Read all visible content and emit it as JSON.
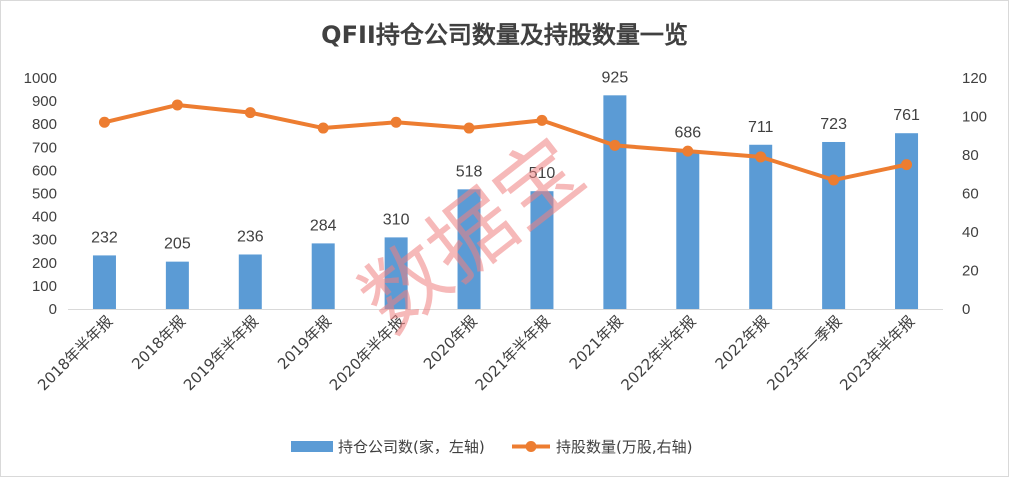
{
  "chart_data": {
    "type": "bar",
    "title": "QFII持仓公司数量及持股数量一览",
    "categories": [
      "2018年半年报",
      "2018年报",
      "2019年半年报",
      "2019年报",
      "2020年半年报",
      "2020年报",
      "2021年半年报",
      "2021年报",
      "2022年半年报",
      "2022年报",
      "2023年一季报",
      "2023年半年报"
    ],
    "series": [
      {
        "name": "持仓公司数(家，左轴)",
        "type": "bar",
        "axis": "left",
        "color": "#5b9bd5",
        "values": [
          232,
          205,
          236,
          284,
          310,
          518,
          510,
          925,
          686,
          711,
          723,
          761
        ]
      },
      {
        "name": "持股数量(万股,右轴)",
        "type": "line",
        "axis": "right",
        "color": "#ed7d31",
        "values": [
          97,
          106,
          102,
          94,
          97,
          94,
          98,
          85,
          82,
          79,
          67,
          75
        ]
      }
    ],
    "left_axis": {
      "ylim": [
        0,
        1000
      ],
      "ticks": [
        0,
        100,
        200,
        300,
        400,
        500,
        600,
        700,
        800,
        900,
        1000
      ]
    },
    "right_axis": {
      "ylim": [
        0,
        120
      ],
      "ticks": [
        0,
        20,
        40,
        60,
        80,
        100,
        120
      ]
    },
    "grid": false,
    "legend_position": "bottom",
    "watermark": "数据宝"
  }
}
